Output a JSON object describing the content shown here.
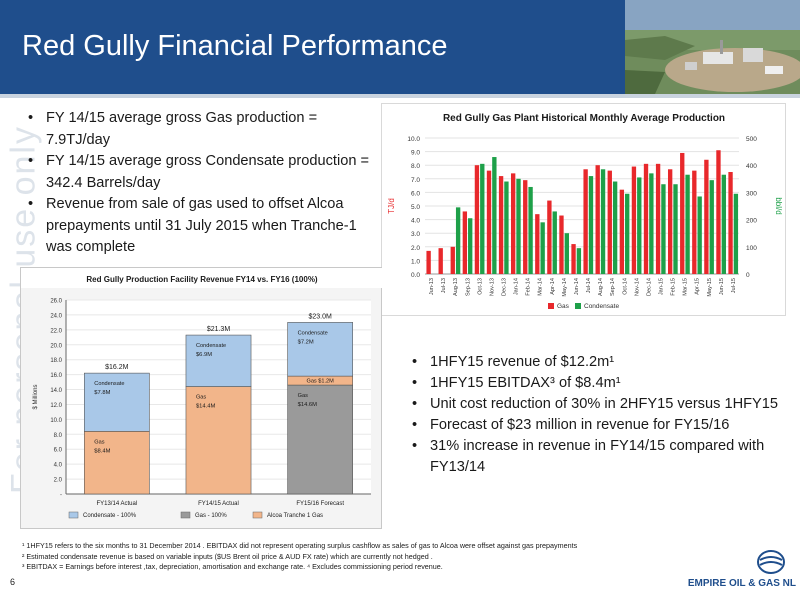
{
  "header": {
    "title": "Red Gully Financial Performance",
    "bg_color": "#1f4e8c"
  },
  "watermark": "For personal use only",
  "top_bullets": [
    "FY 14/15 average gross Gas production = 7.9TJ/day",
    "FY 14/15 average gross Condensate production = 342.4 Barrels/day",
    "Revenue from sale of gas used to offset Alcoa prepayments until 31 July 2015 when Tranche-1 was complete"
  ],
  "mid_bullets": [
    "1HFY15 revenue of $12.2m¹",
    "1HFY15 EBITDAX³ of $8.4m¹",
    "Unit cost reduction of 30% in 2HFY15 versus 1HFY15",
    "Forecast of $23 million in revenue for FY15/16",
    "31% increase in revenue in FY14/15 compared with FY13/14"
  ],
  "footnotes": [
    "¹ 1HFY15 refers to the six months to 31 December 2014 . EBITDAX did not  represent operating surplus cashflow as sales of gas to Alcoa were offset against gas prepayments",
    "² Estimated condensate revenue is based on variable inputs ($US Brent oil price & AUD FX rate) which are currently not hedged .",
    "³ EBITDAX = Earnings before interest ,tax, depreciation, amortisation and exchange rate. ⁴ Excludes  commissioning period revenue."
  ],
  "page_number": "6",
  "logo_text": "EMPIRE OIL & GAS NL",
  "chart_data": [
    {
      "type": "bar",
      "title": "Red Gully Gas Plant Historical Monthly Average Production",
      "ylabel": "TJ/d",
      "y2label": "bbl/d",
      "ylim": [
        0,
        10
      ],
      "y2lim": [
        0,
        500
      ],
      "yticks": [
        "0.0",
        "1.0",
        "2.0",
        "3.0",
        "4.0",
        "5.0",
        "6.0",
        "7.0",
        "8.0",
        "9.0",
        "10.0"
      ],
      "y2ticks": [
        "0",
        "100",
        "200",
        "300",
        "400",
        "500"
      ],
      "legend_position": "bottom",
      "categories": [
        "Jun-13",
        "Jul-13",
        "Aug-13",
        "Sep-13",
        "Oct-13",
        "Nov-13",
        "Dec-13",
        "Jan-14",
        "Feb-14",
        "Mar-14",
        "Apr-14",
        "May-14",
        "Jun-14",
        "Jul-14",
        "Aug-14",
        "Sep-14",
        "Oct-14",
        "Nov-14",
        "Dec-14",
        "Jan-15",
        "Feb-15",
        "Mar-15",
        "Apr-15",
        "May-15",
        "Jun-15",
        "Jul-15"
      ],
      "series": [
        {
          "name": "Gas",
          "axis": "left",
          "color": "#e8282b",
          "values": [
            1.7,
            1.9,
            2.0,
            4.6,
            8.0,
            7.6,
            7.2,
            7.4,
            6.9,
            4.4,
            5.4,
            4.3,
            2.2,
            7.7,
            8.0,
            7.6,
            6.2,
            7.9,
            8.1,
            8.1,
            7.7,
            8.9,
            7.6,
            8.4,
            9.1,
            7.5
          ]
        },
        {
          "name": "Condensate",
          "axis": "right",
          "color": "#1ea049",
          "values": [
            null,
            null,
            245,
            205,
            405,
            430,
            340,
            350,
            320,
            190,
            230,
            150,
            95,
            360,
            385,
            340,
            295,
            355,
            370,
            330,
            330,
            365,
            285,
            345,
            365,
            295
          ]
        }
      ]
    },
    {
      "type": "bar",
      "title": "Red Gully Production Facility Revenue FY14 vs. FY16 (100%)",
      "ylabel": "$ Millions",
      "ylim": [
        0,
        26
      ],
      "yticks": [
        "-",
        "2.0",
        "4.0",
        "6.0",
        "8.0",
        "10.0",
        "12.0",
        "14.0",
        "16.0",
        "18.0",
        "20.0",
        "22.0",
        "24.0",
        "26.0"
      ],
      "legend_position": "bottom",
      "categories": [
        "FY13/14 Actual",
        "FY14/15 Actual",
        "FY15/16 Forecast"
      ],
      "totals": [
        "$16.2M",
        "$21.3M",
        "$23.0M"
      ],
      "total_values": [
        16.2,
        21.3,
        23.0
      ],
      "segments": [
        [
          {
            "series": "Alcoa Tranche 1 Gas",
            "value": 8.4,
            "label": "Gas",
            "value_label": "$8.4M"
          },
          {
            "series": "Condensate - 100%",
            "value": 7.8,
            "label": "Condensate",
            "value_label": "$7.8M"
          }
        ],
        [
          {
            "series": "Alcoa Tranche 1 Gas",
            "value": 14.4,
            "label": "Gas",
            "value_label": "$14.4M"
          },
          {
            "series": "Condensate - 100%",
            "value": 6.9,
            "label": "Condensate",
            "value_label": "$6.9M"
          }
        ],
        [
          {
            "series": "Gas - 100%",
            "value": 14.6,
            "label": "Gas",
            "value_label": "$14.6M"
          },
          {
            "series": "Alcoa Tranche 1 Gas",
            "value": 1.2,
            "label": "Gas $1.2M",
            "value_label": ""
          },
          {
            "series": "Condensate - 100%",
            "value": 7.2,
            "label": "Condensate",
            "value_label": "$7.2M"
          }
        ]
      ],
      "series": [
        {
          "name": "Condensate - 100%",
          "color": "#a9c8e8"
        },
        {
          "name": "Gas - 100%",
          "color": "#9a9a9a"
        },
        {
          "name": "Alcoa Tranche 1 Gas",
          "color": "#f2b58a"
        }
      ]
    }
  ]
}
